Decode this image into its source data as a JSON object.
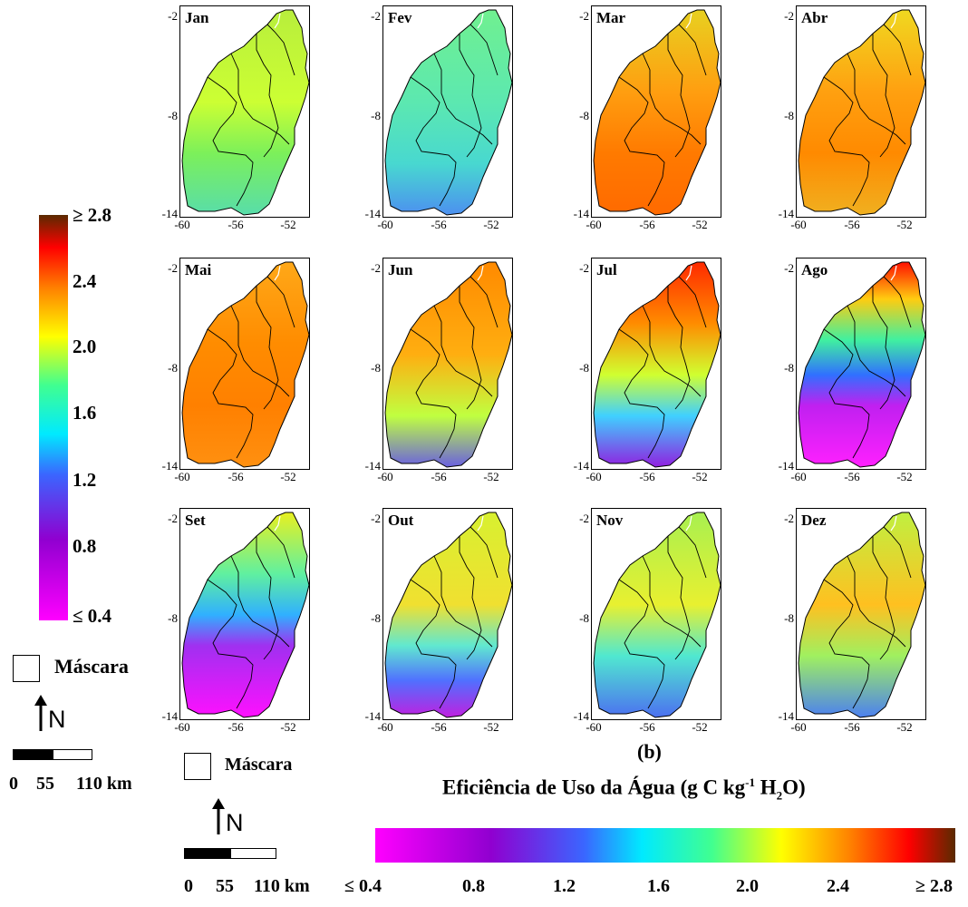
{
  "panels": [
    {
      "month": "Jan",
      "scheme": "jan"
    },
    {
      "month": "Fev",
      "scheme": "fev"
    },
    {
      "month": "Mar",
      "scheme": "mar"
    },
    {
      "month": "Abr",
      "scheme": "abr"
    },
    {
      "month": "Mai",
      "scheme": "mai"
    },
    {
      "month": "Jun",
      "scheme": "jun"
    },
    {
      "month": "Jul",
      "scheme": "jul"
    },
    {
      "month": "Ago",
      "scheme": "ago"
    },
    {
      "month": "Set",
      "scheme": "set"
    },
    {
      "month": "Out",
      "scheme": "out"
    },
    {
      "month": "Nov",
      "scheme": "nov"
    },
    {
      "month": "Dez",
      "scheme": "dez"
    }
  ],
  "axes": {
    "y_ticks": [
      "-2",
      "-8",
      "-14"
    ],
    "x_ticks": [
      "-60",
      "-56",
      "-52"
    ]
  },
  "colorbar": {
    "vertical_ticks": [
      "≥ 2.8",
      "2.4",
      "2.0",
      "1.6",
      "1.2",
      "0.8",
      "≤ 0.4"
    ],
    "horizontal_ticks": [
      "≤ 0.4",
      "0.8",
      "1.2",
      "1.6",
      "2.0",
      "2.4",
      "≥ 2.8"
    ],
    "colors": [
      "#ff00ff",
      "#9000d0",
      "#3a66ff",
      "#00eaff",
      "#40ff90",
      "#ffff00",
      "#ff8000",
      "#ff0000",
      "#5a2a00"
    ]
  },
  "legend": {
    "mask_label": "Máscara",
    "north_label": "N",
    "scale_labels": [
      "0",
      "55",
      "110 km"
    ]
  },
  "caption": {
    "panel_letter": "(b)",
    "title_main": "Eficiência de Uso da Água (g C kg",
    "title_sup": "-1",
    "title_h": " H",
    "title_sub": "2",
    "title_end": "O)"
  }
}
